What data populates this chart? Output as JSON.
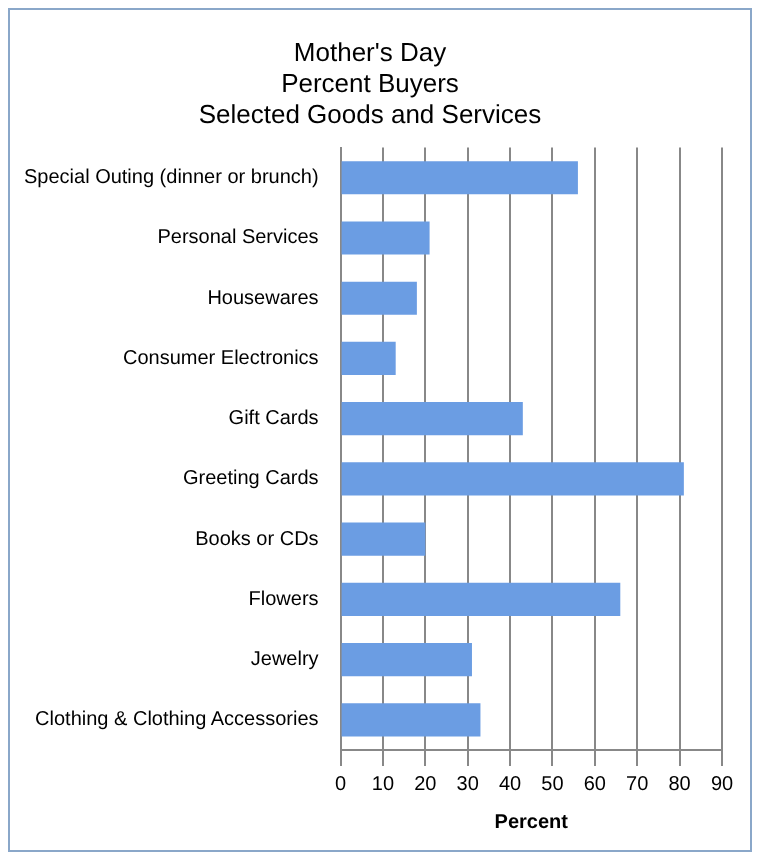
{
  "chart_data": {
    "type": "bar",
    "orientation": "horizontal",
    "title": "Mother's Day\nPercent Buyers\nSelected Goods and Services",
    "xlabel": "Percent",
    "categories": [
      "Special Outing (dinner or brunch)",
      "Personal Services",
      "Housewares",
      "Consumer Electronics",
      "Gift Cards",
      "Greeting Cards",
      "Books or CDs",
      "Flowers",
      "Jewelry",
      "Clothing & Clothing Accessories"
    ],
    "values": [
      56,
      21,
      18,
      13,
      43,
      81,
      20,
      66,
      31,
      33
    ],
    "color": "#6b9de3",
    "xlim": [
      0,
      90
    ],
    "xticks": [
      0,
      10,
      20,
      30,
      40,
      50,
      60,
      70,
      80,
      90
    ],
    "grid": "x",
    "legend": false
  }
}
